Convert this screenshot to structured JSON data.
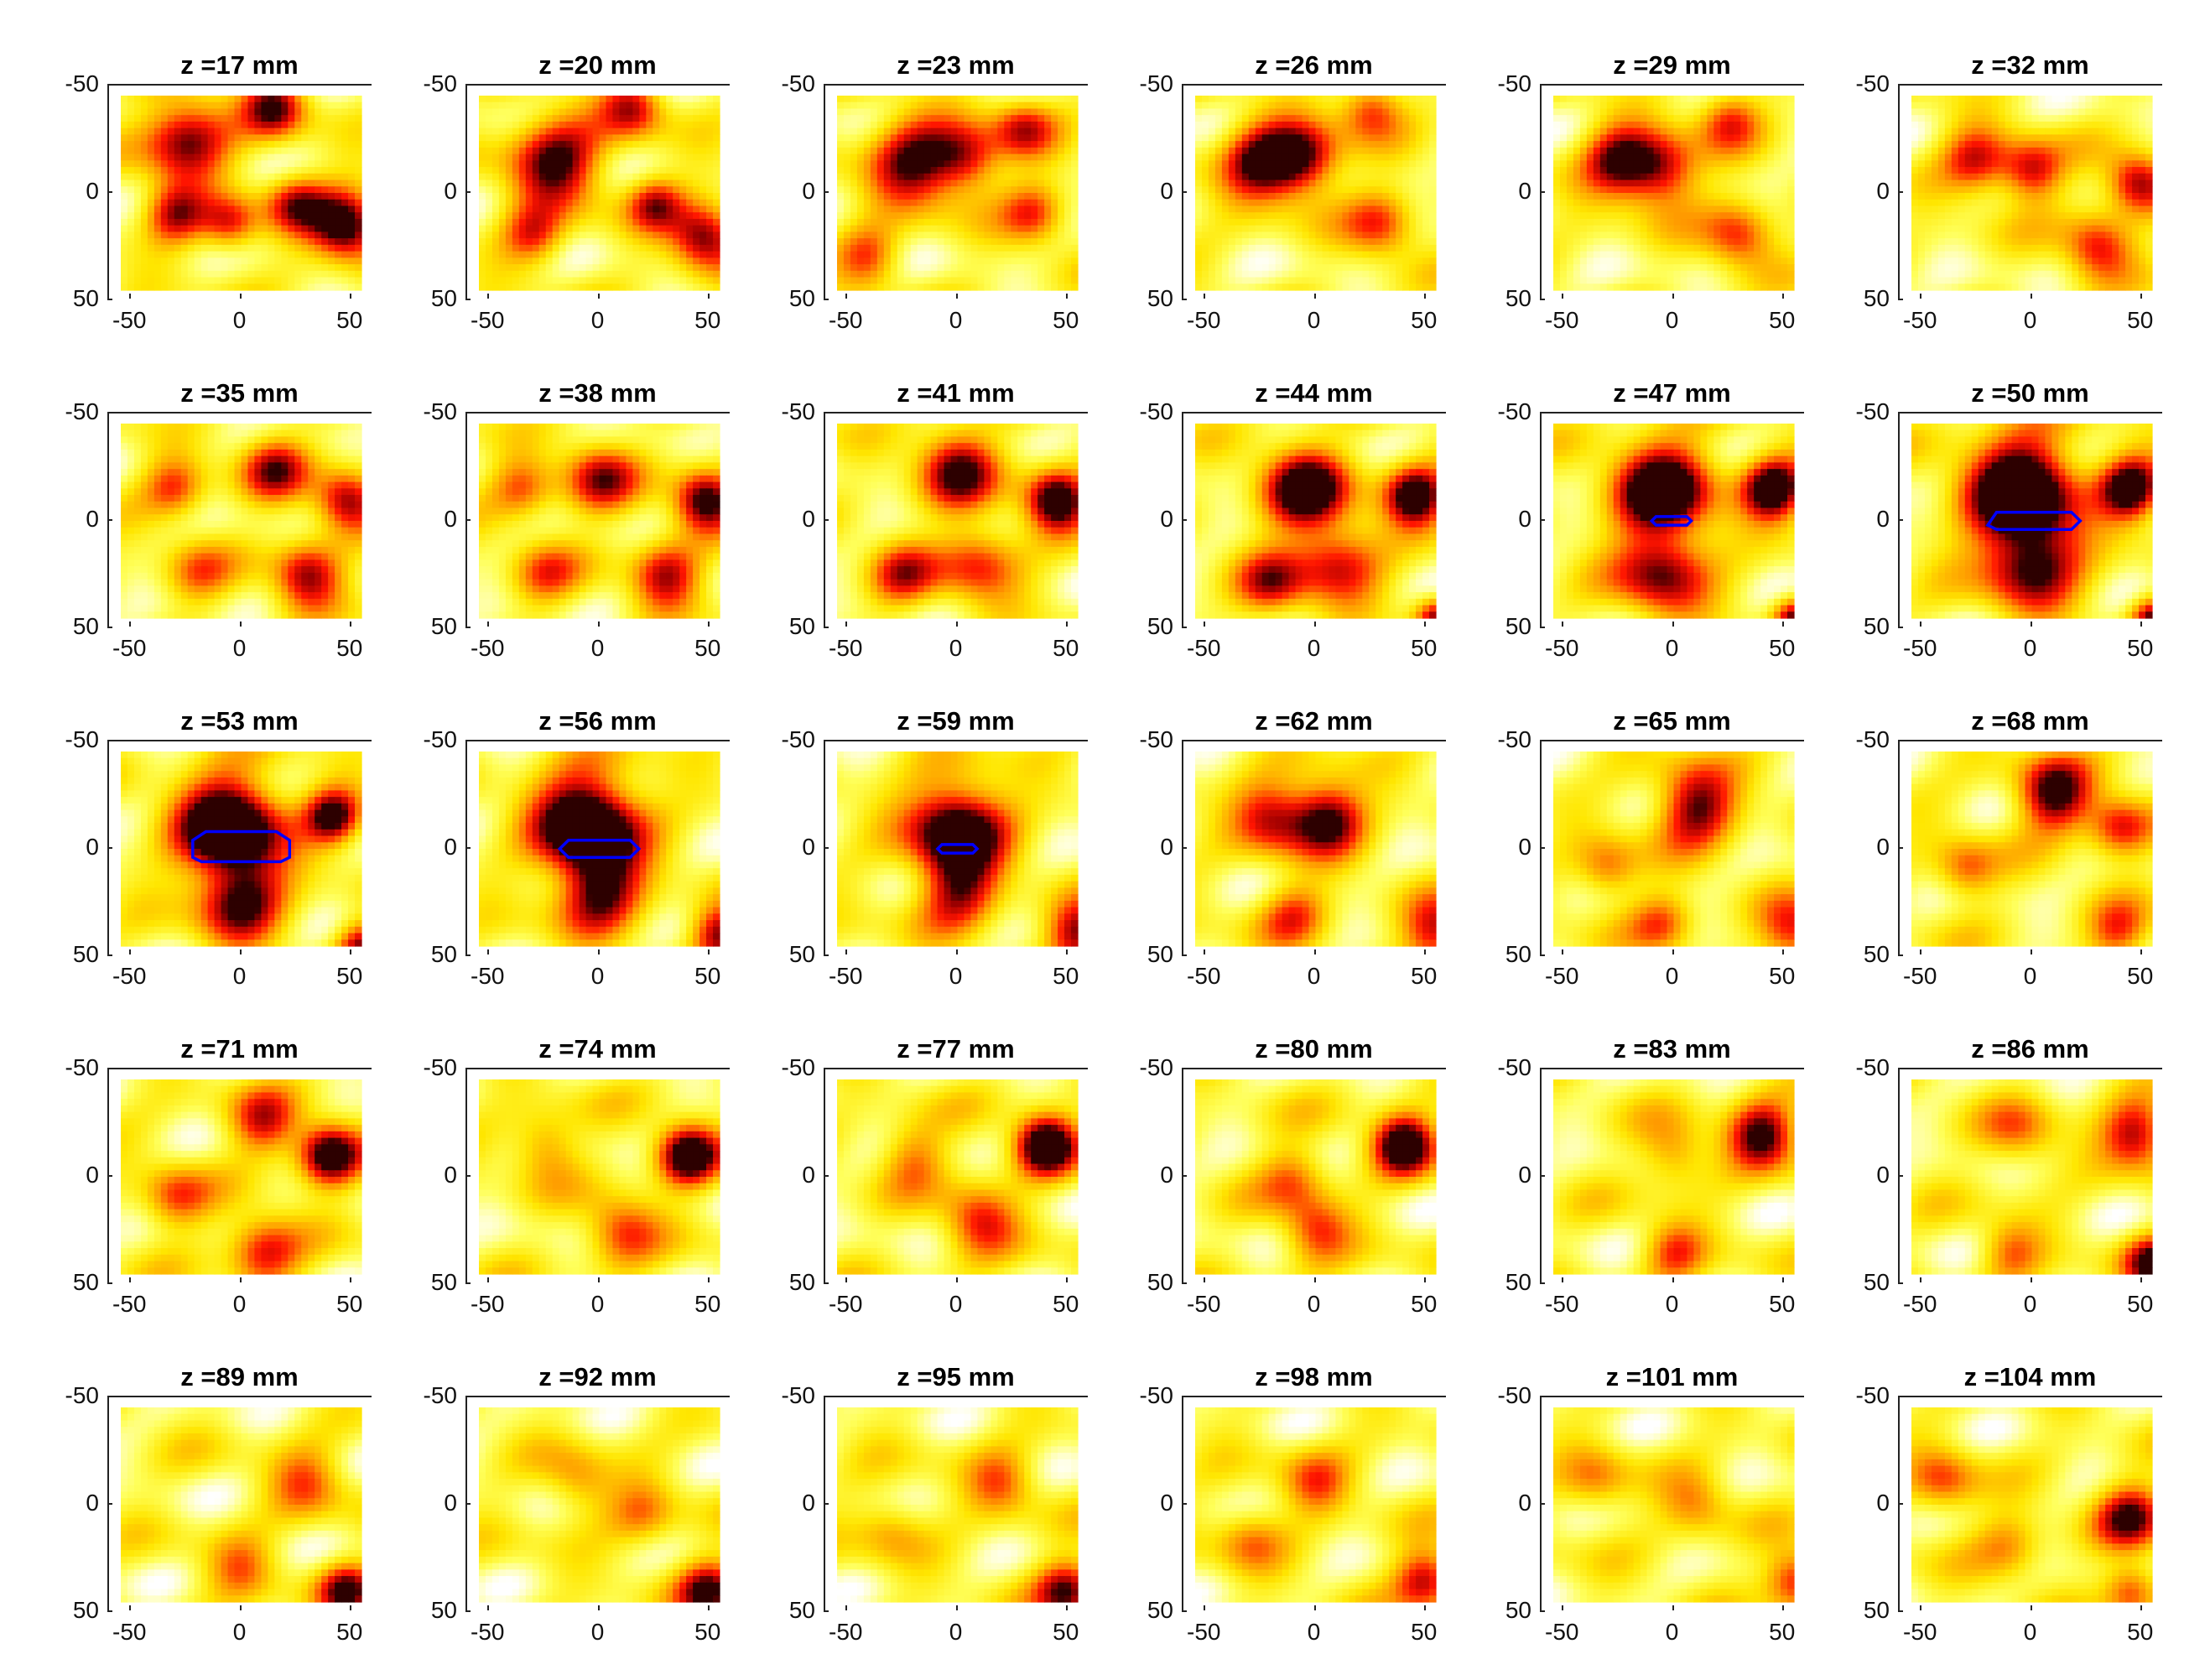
{
  "chart_data": {
    "type": "heatmap",
    "layout": {
      "rows": 5,
      "cols": 6
    },
    "colormap": [
      "#ffffff",
      "#ffff00",
      "#ff9a00",
      "#ff0000",
      "#6b0000"
    ],
    "outline_color": "#0000ff",
    "x_ticks": [
      "-50",
      "0",
      "50"
    ],
    "y_ticks": [
      "-50",
      "0",
      "50"
    ],
    "xlim": [
      -60,
      60
    ],
    "ylim": [
      -50,
      50
    ],
    "y_reversed": true,
    "panels": [
      {
        "title": "z =17 mm",
        "z": 17,
        "blobs": [
          {
            "x": -25,
            "y": -25,
            "a": 0.8,
            "s": 14
          },
          {
            "x": 15,
            "y": -40,
            "a": 0.7,
            "s": 10
          },
          {
            "x": 48,
            "y": 15,
            "a": 0.95,
            "s": 11
          },
          {
            "x": -30,
            "y": 10,
            "a": 0.6,
            "s": 10
          },
          {
            "x": -5,
            "y": 15,
            "a": 0.55,
            "s": 9
          },
          {
            "x": 25,
            "y": 5,
            "a": 0.6,
            "s": 10
          }
        ],
        "outline": null
      },
      {
        "title": "z =20 mm",
        "z": 20,
        "blobs": [
          {
            "x": -20,
            "y": -15,
            "a": 0.8,
            "s": 15
          },
          {
            "x": 15,
            "y": -40,
            "a": 0.6,
            "s": 10
          },
          {
            "x": 48,
            "y": 20,
            "a": 0.8,
            "s": 11
          },
          {
            "x": -30,
            "y": 20,
            "a": 0.5,
            "s": 10
          },
          {
            "x": 25,
            "y": 5,
            "a": 0.55,
            "s": 9
          }
        ],
        "outline": null
      },
      {
        "title": "z =23 mm",
        "z": 23,
        "blobs": [
          {
            "x": -20,
            "y": -15,
            "a": 0.75,
            "s": 15
          },
          {
            "x": 5,
            "y": -15,
            "a": 0.6,
            "s": 11
          },
          {
            "x": 30,
            "y": -30,
            "a": 0.55,
            "s": 10
          },
          {
            "x": 35,
            "y": 10,
            "a": 0.5,
            "s": 10
          },
          {
            "x": -40,
            "y": 30,
            "a": 0.45,
            "s": 10
          }
        ],
        "outline": null
      },
      {
        "title": "z =26 mm",
        "z": 26,
        "blobs": [
          {
            "x": -25,
            "y": -15,
            "a": 0.75,
            "s": 13
          },
          {
            "x": -5,
            "y": -15,
            "a": 0.75,
            "s": 12
          },
          {
            "x": 25,
            "y": -40,
            "a": 0.55,
            "s": 10
          },
          {
            "x": 30,
            "y": 15,
            "a": 0.5,
            "s": 11
          }
        ],
        "outline": null
      },
      {
        "title": "z =29 mm",
        "z": 29,
        "blobs": [
          {
            "x": -25,
            "y": -15,
            "a": 0.7,
            "s": 12
          },
          {
            "x": -5,
            "y": -10,
            "a": 0.7,
            "s": 12
          },
          {
            "x": 25,
            "y": -35,
            "a": 0.5,
            "s": 10
          },
          {
            "x": 30,
            "y": 20,
            "a": 0.55,
            "s": 11
          }
        ],
        "outline": null
      },
      {
        "title": "z =32 mm",
        "z": 32,
        "blobs": [
          {
            "x": -25,
            "y": -15,
            "a": 0.6,
            "s": 11
          },
          {
            "x": 0,
            "y": -10,
            "a": 0.65,
            "s": 10
          },
          {
            "x": 48,
            "y": -5,
            "a": 0.7,
            "s": 10
          },
          {
            "x": 30,
            "y": 25,
            "a": 0.6,
            "s": 11
          }
        ],
        "outline": null
      },
      {
        "title": "z =35 mm",
        "z": 35,
        "blobs": [
          {
            "x": -30,
            "y": -15,
            "a": 0.5,
            "s": 10
          },
          {
            "x": 15,
            "y": -25,
            "a": 0.6,
            "s": 11
          },
          {
            "x": 48,
            "y": -10,
            "a": 0.7,
            "s": 10
          },
          {
            "x": 30,
            "y": 25,
            "a": 0.7,
            "s": 11
          },
          {
            "x": -20,
            "y": 25,
            "a": 0.35,
            "s": 11
          }
        ],
        "outline": null
      },
      {
        "title": "z =38 mm",
        "z": 38,
        "blobs": [
          {
            "x": -35,
            "y": -15,
            "a": 0.45,
            "s": 10
          },
          {
            "x": 0,
            "y": -20,
            "a": 0.6,
            "s": 12
          },
          {
            "x": 48,
            "y": -10,
            "a": 0.85,
            "s": 10
          },
          {
            "x": 30,
            "y": 25,
            "a": 0.65,
            "s": 11
          },
          {
            "x": -25,
            "y": 25,
            "a": 0.4,
            "s": 11
          }
        ],
        "outline": null
      },
      {
        "title": "z =41 mm",
        "z": 41,
        "blobs": [
          {
            "x": 0,
            "y": -25,
            "a": 0.75,
            "s": 13
          },
          {
            "x": 45,
            "y": -10,
            "a": 0.95,
            "s": 10
          },
          {
            "x": 10,
            "y": 20,
            "a": 0.55,
            "s": 13
          },
          {
            "x": -25,
            "y": 25,
            "a": 0.5,
            "s": 11
          }
        ],
        "outline": null
      },
      {
        "title": "z =44 mm",
        "z": 44,
        "blobs": [
          {
            "x": -5,
            "y": -15,
            "a": 0.9,
            "s": 14
          },
          {
            "x": 45,
            "y": -12,
            "a": 0.95,
            "s": 10
          },
          {
            "x": 10,
            "y": 20,
            "a": 0.6,
            "s": 14
          },
          {
            "x": -20,
            "y": 30,
            "a": 0.55,
            "s": 11
          },
          {
            "x": 55,
            "y": 45,
            "a": 0.7,
            "s": 7
          }
        ],
        "outline": null
      },
      {
        "title": "z =47 mm",
        "z": 47,
        "blobs": [
          {
            "x": -5,
            "y": -15,
            "a": 1.0,
            "s": 16
          },
          {
            "x": 45,
            "y": -15,
            "a": 1.0,
            "s": 10
          },
          {
            "x": -5,
            "y": 25,
            "a": 0.7,
            "s": 15
          },
          {
            "x": 55,
            "y": 45,
            "a": 0.75,
            "s": 7
          }
        ],
        "outline": [
          [
            -8,
            -2
          ],
          [
            6,
            -2
          ],
          [
            8,
            0
          ],
          [
            6,
            2
          ],
          [
            -8,
            2
          ],
          [
            -10,
            0
          ]
        ]
      },
      {
        "title": "z =50 mm",
        "z": 50,
        "blobs": [
          {
            "x": -5,
            "y": -15,
            "a": 1.1,
            "s": 18
          },
          {
            "x": 45,
            "y": -15,
            "a": 0.95,
            "s": 10
          },
          {
            "x": 0,
            "y": 20,
            "a": 0.75,
            "s": 16
          },
          {
            "x": 55,
            "y": 45,
            "a": 0.75,
            "s": 7
          }
        ],
        "outline": [
          [
            -20,
            2
          ],
          [
            -16,
            -4
          ],
          [
            18,
            -4
          ],
          [
            22,
            0
          ],
          [
            18,
            4
          ],
          [
            -16,
            4
          ]
        ]
      },
      {
        "title": "z =53 mm",
        "z": 53,
        "blobs": [
          {
            "x": -5,
            "y": -10,
            "a": 1.15,
            "s": 17
          },
          {
            "x": 42,
            "y": -15,
            "a": 0.85,
            "s": 9
          },
          {
            "x": 0,
            "y": 25,
            "a": 0.7,
            "s": 14
          },
          {
            "x": 55,
            "y": 45,
            "a": 0.7,
            "s": 8
          }
        ],
        "outline": [
          [
            -22,
            -4
          ],
          [
            -16,
            -8
          ],
          [
            -10,
            -8
          ],
          [
            10,
            -8
          ],
          [
            16,
            -8
          ],
          [
            22,
            -4
          ],
          [
            22,
            4
          ],
          [
            18,
            6
          ],
          [
            -18,
            6
          ],
          [
            -22,
            4
          ]
        ]
      },
      {
        "title": "z =56 mm",
        "z": 56,
        "blobs": [
          {
            "x": -5,
            "y": -12,
            "a": 1.15,
            "s": 17
          },
          {
            "x": 0,
            "y": 20,
            "a": 0.7,
            "s": 14
          },
          {
            "x": 55,
            "y": 40,
            "a": 0.75,
            "s": 9
          }
        ],
        "outline": [
          [
            -18,
            0
          ],
          [
            -14,
            -4
          ],
          [
            14,
            -4
          ],
          [
            18,
            0
          ],
          [
            14,
            4
          ],
          [
            -14,
            4
          ]
        ]
      },
      {
        "title": "z =59 mm",
        "z": 59,
        "blobs": [
          {
            "x": 0,
            "y": -10,
            "a": 1.0,
            "s": 16
          },
          {
            "x": 0,
            "y": 20,
            "a": 0.6,
            "s": 13
          },
          {
            "x": 55,
            "y": 40,
            "a": 0.75,
            "s": 10
          }
        ],
        "outline": [
          [
            -7,
            -2
          ],
          [
            7,
            -2
          ],
          [
            9,
            0
          ],
          [
            7,
            2
          ],
          [
            -7,
            2
          ],
          [
            -9,
            0
          ]
        ]
      },
      {
        "title": "z =62 mm",
        "z": 62,
        "blobs": [
          {
            "x": -20,
            "y": -15,
            "a": 0.6,
            "s": 12
          },
          {
            "x": 5,
            "y": -15,
            "a": 0.85,
            "s": 12
          },
          {
            "x": 55,
            "y": 40,
            "a": 0.65,
            "s": 11
          },
          {
            "x": -10,
            "y": 30,
            "a": 0.45,
            "s": 11
          }
        ],
        "outline": null
      },
      {
        "title": "z =65 mm",
        "z": 65,
        "blobs": [
          {
            "x": 10,
            "y": -20,
            "a": 0.8,
            "s": 13
          },
          {
            "x": -30,
            "y": 10,
            "a": 0.45,
            "s": 10
          },
          {
            "x": 55,
            "y": 40,
            "a": 0.6,
            "s": 11
          },
          {
            "x": -5,
            "y": 35,
            "a": 0.45,
            "s": 10
          }
        ],
        "outline": null
      },
      {
        "title": "z =68 mm",
        "z": 68,
        "blobs": [
          {
            "x": 10,
            "y": -25,
            "a": 0.85,
            "s": 12
          },
          {
            "x": 40,
            "y": -10,
            "a": 0.6,
            "s": 10
          },
          {
            "x": -30,
            "y": 10,
            "a": 0.45,
            "s": 10
          },
          {
            "x": 40,
            "y": 40,
            "a": 0.5,
            "s": 10
          }
        ],
        "outline": null
      },
      {
        "title": "z =71 mm",
        "z": 71,
        "blobs": [
          {
            "x": 40,
            "y": -10,
            "a": 0.95,
            "s": 10
          },
          {
            "x": 10,
            "y": -25,
            "a": 0.55,
            "s": 11
          },
          {
            "x": -30,
            "y": 10,
            "a": 0.45,
            "s": 11
          },
          {
            "x": 10,
            "y": 35,
            "a": 0.6,
            "s": 12
          }
        ],
        "outline": null
      },
      {
        "title": "z =74 mm",
        "z": 74,
        "blobs": [
          {
            "x": 40,
            "y": -10,
            "a": 0.95,
            "s": 10
          },
          {
            "x": -25,
            "y": -15,
            "a": 0.4,
            "s": 11
          },
          {
            "x": 10,
            "y": 25,
            "a": 0.5,
            "s": 12
          }
        ],
        "outline": null
      },
      {
        "title": "z =77 mm",
        "z": 77,
        "blobs": [
          {
            "x": 40,
            "y": -15,
            "a": 1.0,
            "s": 10
          },
          {
            "x": -20,
            "y": -10,
            "a": 0.4,
            "s": 11
          },
          {
            "x": 10,
            "y": 20,
            "a": 0.55,
            "s": 12
          }
        ],
        "outline": null
      },
      {
        "title": "z =80 mm",
        "z": 80,
        "blobs": [
          {
            "x": 40,
            "y": -15,
            "a": 0.95,
            "s": 10
          },
          {
            "x": -10,
            "y": 0,
            "a": 0.4,
            "s": 11
          },
          {
            "x": 0,
            "y": 25,
            "a": 0.5,
            "s": 11
          }
        ],
        "outline": null
      },
      {
        "title": "z =83 mm",
        "z": 83,
        "blobs": [
          {
            "x": 40,
            "y": -20,
            "a": 0.8,
            "s": 11
          },
          {
            "x": 0,
            "y": -10,
            "a": 0.4,
            "s": 11
          },
          {
            "x": 0,
            "y": 35,
            "a": 0.45,
            "s": 10
          }
        ],
        "outline": null
      },
      {
        "title": "z =86 mm",
        "z": 86,
        "blobs": [
          {
            "x": 48,
            "y": -20,
            "a": 0.7,
            "s": 11
          },
          {
            "x": 55,
            "y": 40,
            "a": 0.75,
            "s": 9
          },
          {
            "x": -5,
            "y": -20,
            "a": 0.35,
            "s": 12
          },
          {
            "x": -10,
            "y": 35,
            "a": 0.4,
            "s": 10
          }
        ],
        "outline": null
      },
      {
        "title": "z =89 mm",
        "z": 89,
        "blobs": [
          {
            "x": 48,
            "y": 40,
            "a": 0.7,
            "s": 9
          },
          {
            "x": 30,
            "y": -10,
            "a": 0.4,
            "s": 12
          },
          {
            "x": 0,
            "y": 30,
            "a": 0.35,
            "s": 11
          }
        ],
        "outline": null
      },
      {
        "title": "z =92 mm",
        "z": 92,
        "blobs": [
          {
            "x": 50,
            "y": 40,
            "a": 0.75,
            "s": 10
          },
          {
            "x": -10,
            "y": -10,
            "a": 0.35,
            "s": 11
          },
          {
            "x": 20,
            "y": 5,
            "a": 0.35,
            "s": 11
          }
        ],
        "outline": null
      },
      {
        "title": "z =95 mm",
        "z": 95,
        "blobs": [
          {
            "x": 50,
            "y": 40,
            "a": 0.75,
            "s": 10
          },
          {
            "x": 20,
            "y": -10,
            "a": 0.4,
            "s": 11
          },
          {
            "x": -30,
            "y": 10,
            "a": 0.3,
            "s": 11
          }
        ],
        "outline": null
      },
      {
        "title": "z =98 mm",
        "z": 98,
        "blobs": [
          {
            "x": 50,
            "y": 35,
            "a": 0.7,
            "s": 10
          },
          {
            "x": 0,
            "y": -10,
            "a": 0.4,
            "s": 11
          },
          {
            "x": -30,
            "y": 15,
            "a": 0.35,
            "s": 11
          }
        ],
        "outline": null
      },
      {
        "title": "z =101 mm",
        "z": 101,
        "blobs": [
          {
            "x": 55,
            "y": 35,
            "a": 0.65,
            "s": 10
          },
          {
            "x": 10,
            "y": 0,
            "a": 0.35,
            "s": 11
          },
          {
            "x": -35,
            "y": -10,
            "a": 0.35,
            "s": 11
          }
        ],
        "outline": null
      },
      {
        "title": "z =104 mm",
        "z": 104,
        "blobs": [
          {
            "x": 45,
            "y": 5,
            "a": 0.7,
            "s": 11
          },
          {
            "x": -40,
            "y": -10,
            "a": 0.45,
            "s": 11
          },
          {
            "x": -10,
            "y": 20,
            "a": 0.35,
            "s": 11
          },
          {
            "x": 45,
            "y": 40,
            "a": 0.55,
            "s": 9
          }
        ],
        "outline": null
      }
    ]
  }
}
